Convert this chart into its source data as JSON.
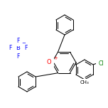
{
  "bg_color": "#ffffff",
  "bond_color": "#000000",
  "atom_colors": {
    "O": "#ff0000",
    "B": "#0000ff",
    "F": "#0000ff",
    "Cl": "#008000",
    "C": "#000000",
    "plus": "#ff0000"
  },
  "line_width": 0.75,
  "font_size": 5.5,
  "figsize": [
    1.52,
    1.52
  ],
  "dpi": 100
}
